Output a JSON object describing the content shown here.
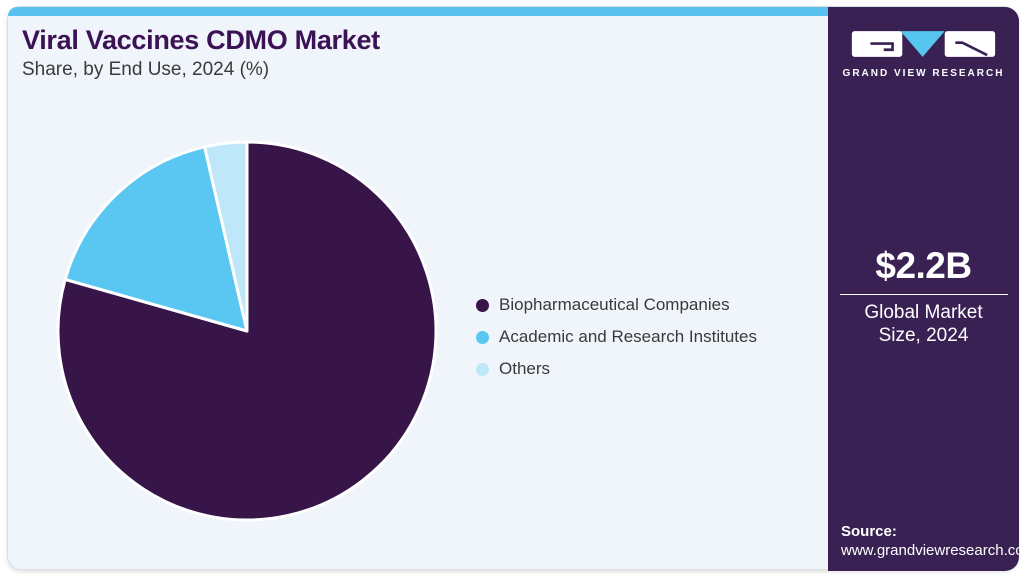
{
  "page": {
    "title": "Viral Vaccines CDMO Market",
    "subtitle": "Share, by End Use, 2024 (%)"
  },
  "chart_data": {
    "type": "pie",
    "title": "Viral Vaccines CDMO Market Share, by End Use, 2024 (%)",
    "labels": [
      "Biopharmaceutical Companies",
      "Academic and Research Institutes",
      "Others"
    ],
    "values": [
      79.4,
      17.0,
      3.6
    ],
    "colors": [
      "#371549",
      "#5ac7f2",
      "#bee7fa"
    ],
    "start_angle_deg": -90,
    "direction": "clockwise",
    "legend_position": "right",
    "slice_stroke_color": "#ffffff"
  },
  "sidebar": {
    "brand_name": "GRAND VIEW RESEARCH",
    "market_size_value": "$2.2B",
    "market_size_label": "Global Market Size, 2024",
    "source_label": "Source:",
    "source_url": "www.grandviewresearch.com"
  },
  "colors": {
    "topbar_accent": "#58c1ee",
    "card_background": "#eff5fa",
    "sidebar_background": "#3a2154",
    "title_text": "#3b1254",
    "logo_triangle": "#56c5f0"
  }
}
